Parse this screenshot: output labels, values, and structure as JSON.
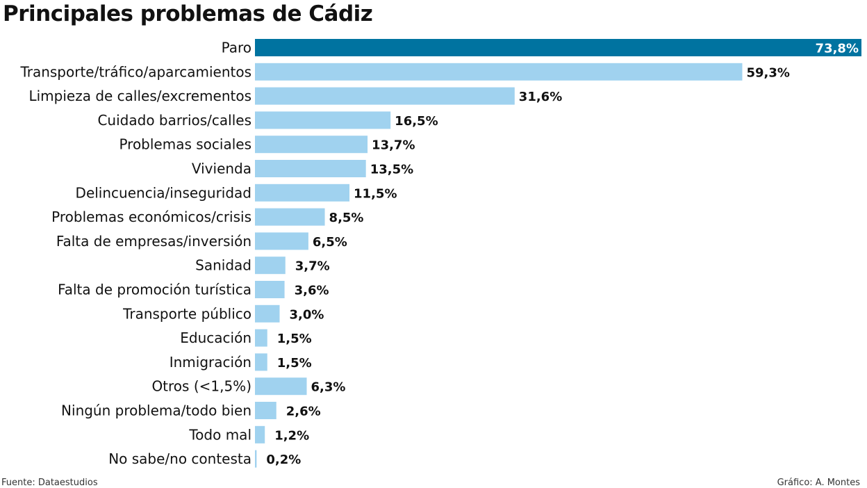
{
  "chart_data": {
    "type": "bar",
    "orientation": "horizontal",
    "title": "Principales problemas de Cádiz",
    "xlabel": "",
    "ylabel": "",
    "unit": "%",
    "xlim": [
      0,
      73.8
    ],
    "grid": false,
    "legend": "none",
    "categories": [
      "Paro",
      "Transporte/tráfico/aparcamientos",
      "Limpieza de calles/excrementos",
      "Cuidado barrios/calles",
      "Problemas sociales",
      "Vivienda",
      "Delincuencia/inseguridad",
      "Problemas económicos/crisis",
      "Falta de empresas/inversión",
      "Sanidad",
      "Falta de promoción turística",
      "Transporte público",
      "Educación",
      "Inmigración",
      "Otros (<1,5%)",
      "Ningún problema/todo bien",
      "Todo mal",
      "No sabe/no contesta"
    ],
    "values": [
      73.8,
      59.3,
      31.6,
      16.5,
      13.7,
      13.5,
      11.5,
      8.5,
      6.5,
      3.7,
      3.6,
      3.0,
      1.5,
      1.5,
      6.3,
      2.6,
      1.2,
      0.2
    ],
    "value_labels": [
      "73,8%",
      "59,3%",
      "31,6%",
      "16,5%",
      "13,7%",
      "13,5%",
      "11,5%",
      "8,5%",
      "6,5%",
      "3,7%",
      "3,6%",
      "3,0%",
      "1,5%",
      "1,5%",
      "6,3%",
      "2,6%",
      "1,2%",
      "0,2%"
    ],
    "highlight_index": 0,
    "colors": {
      "highlight": "#0073a0",
      "bar": "#a0d2ef",
      "text": "#111111",
      "highlight_text": "#ffffff"
    }
  },
  "footer": {
    "source": "Fuente: Dataestudios",
    "credit": "Gráfico: A. Montes"
  }
}
